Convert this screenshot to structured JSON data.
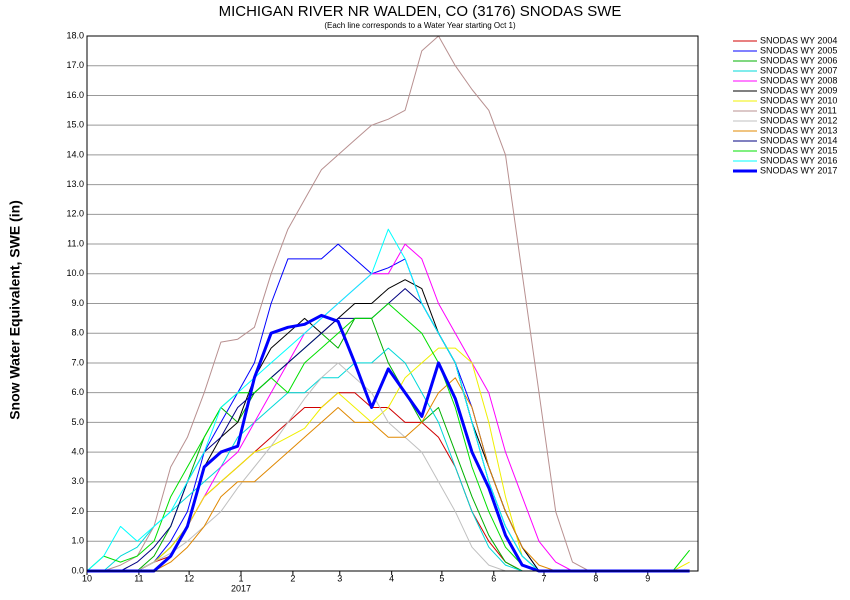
{
  "chart_data": {
    "type": "line",
    "title": "MICHIGAN RIVER NR WALDEN, CO (3176) SNODAS SWE",
    "subtitle": "(Each line corresponds to a Water Year starting Oct 1)",
    "y_label": "Snow Water Equivalent, SWE (in)",
    "x_annotation": "2017",
    "grid": true,
    "legend": "outside-right",
    "x": [
      0,
      10,
      20,
      30,
      40,
      50,
      60,
      70,
      80,
      90,
      100,
      110,
      120,
      130,
      140,
      150,
      160,
      170,
      180,
      190,
      200,
      210,
      220,
      230,
      240,
      250,
      260,
      270,
      280,
      290,
      300,
      310,
      320,
      330,
      340,
      350,
      360
    ],
    "xlim": [
      0,
      365
    ],
    "xticks": [
      {
        "value": 0,
        "label": "10"
      },
      {
        "value": 31,
        "label": "11"
      },
      {
        "value": 61,
        "label": "12"
      },
      {
        "value": 92,
        "label": "1"
      },
      {
        "value": 123,
        "label": "2"
      },
      {
        "value": 151,
        "label": "3"
      },
      {
        "value": 182,
        "label": "4"
      },
      {
        "value": 212,
        "label": "5"
      },
      {
        "value": 243,
        "label": "6"
      },
      {
        "value": 273,
        "label": "7"
      },
      {
        "value": 304,
        "label": "8"
      },
      {
        "value": 335,
        "label": "9"
      }
    ],
    "ylim": [
      0,
      18
    ],
    "yticks": [
      {
        "value": 0,
        "label": "0.0"
      },
      {
        "value": 1,
        "label": "1.0"
      },
      {
        "value": 2,
        "label": "2.0"
      },
      {
        "value": 3,
        "label": "3.0"
      },
      {
        "value": 4,
        "label": "4.0"
      },
      {
        "value": 5,
        "label": "5.0"
      },
      {
        "value": 6,
        "label": "6.0"
      },
      {
        "value": 7,
        "label": "7.0"
      },
      {
        "value": 8,
        "label": "8.0"
      },
      {
        "value": 9,
        "label": "9.0"
      },
      {
        "value": 10,
        "label": "10.0"
      },
      {
        "value": 11,
        "label": "11.0"
      },
      {
        "value": 12,
        "label": "12.0"
      },
      {
        "value": 13,
        "label": "13.0"
      },
      {
        "value": 14,
        "label": "14.0"
      },
      {
        "value": 15,
        "label": "15.0"
      },
      {
        "value": 16,
        "label": "16.0"
      },
      {
        "value": 17,
        "label": "17.0"
      },
      {
        "value": 18,
        "label": "18.0"
      }
    ],
    "series": [
      {
        "name": "SNODAS WY 2004",
        "color": "#d00000",
        "values": [
          0,
          0,
          0,
          0,
          0.3,
          0.5,
          1.5,
          2.5,
          3,
          3.5,
          4,
          4.5,
          5,
          5.5,
          5.5,
          6,
          6,
          5.5,
          5.5,
          5,
          5,
          4.5,
          3.5,
          2,
          1,
          0.3,
          0,
          0,
          0,
          0,
          0,
          0,
          0,
          0,
          0,
          0,
          0
        ]
      },
      {
        "name": "SNODAS WY 2005",
        "color": "#0000ff",
        "values": [
          0,
          0,
          0,
          0,
          0.3,
          1,
          2,
          4,
          5,
          6,
          7,
          9,
          10.5,
          10.5,
          10.5,
          11,
          10.5,
          10,
          10.2,
          10.5,
          9,
          8,
          7,
          5.5,
          3.5,
          2,
          0.8,
          0,
          0,
          0,
          0,
          0,
          0,
          0,
          0,
          0,
          0
        ]
      },
      {
        "name": "SNODAS WY 2006",
        "color": "#00b000",
        "values": [
          0,
          0,
          0,
          0,
          0.5,
          1.5,
          3,
          4.5,
          5.5,
          5,
          6,
          6.5,
          7,
          7.5,
          8,
          7.5,
          8.5,
          8.5,
          7,
          6,
          5,
          5.5,
          4,
          2.5,
          1.2,
          0.3,
          0,
          0,
          0,
          0,
          0,
          0,
          0,
          0,
          0,
          0,
          0
        ]
      },
      {
        "name": "SNODAS WY 2007",
        "color": "#00d8d8",
        "values": [
          0,
          0,
          0.5,
          0.8,
          1.5,
          2,
          2.5,
          3,
          3.5,
          4.5,
          5,
          5.5,
          6,
          6,
          6.5,
          6.5,
          7,
          7,
          7.5,
          7,
          6,
          5,
          3.5,
          2,
          0.8,
          0.2,
          0,
          0,
          0,
          0,
          0,
          0,
          0,
          0,
          0,
          0,
          0
        ]
      },
      {
        "name": "SNODAS WY 2008",
        "color": "#ff00ff",
        "values": [
          0,
          0,
          0,
          0,
          0,
          0.5,
          1.5,
          2.5,
          3.5,
          4,
          5,
          6,
          7,
          8,
          8.5,
          9,
          9.5,
          10,
          10,
          11,
          10.5,
          9,
          8,
          7,
          6,
          4,
          2.5,
          1,
          0.3,
          0,
          0,
          0,
          0,
          0,
          0,
          0,
          0
        ]
      },
      {
        "name": "SNODAS WY 2009",
        "color": "#000000",
        "values": [
          0,
          0,
          0,
          0,
          0.3,
          0.8,
          1.5,
          3.5,
          4.5,
          5,
          6.5,
          7.5,
          8,
          8.5,
          8,
          8.5,
          9,
          9,
          9.5,
          9.8,
          9.5,
          8,
          7,
          5,
          3.5,
          2,
          0.8,
          0,
          0,
          0,
          0,
          0,
          0,
          0,
          0,
          0,
          0
        ]
      },
      {
        "name": "SNODAS WY 2010",
        "color": "#f0f000",
        "values": [
          0,
          0,
          0,
          0,
          0.3,
          0.8,
          1.5,
          2.5,
          3,
          3.5,
          4,
          4.2,
          4.5,
          4.8,
          5.5,
          6,
          5.5,
          5,
          5.5,
          6.5,
          7,
          7.5,
          7.5,
          7,
          5,
          2.5,
          0.5,
          0,
          0,
          0,
          0,
          0,
          0,
          0,
          0,
          0,
          0.3
        ]
      },
      {
        "name": "SNODAS WY 2011",
        "color": "#b89090",
        "values": [
          0,
          0,
          0.2,
          0.5,
          1.5,
          3.5,
          4.5,
          6,
          7.7,
          7.8,
          8.2,
          10,
          11.5,
          12.5,
          13.5,
          14,
          14.5,
          15,
          15.2,
          15.5,
          17.5,
          18,
          17,
          16.2,
          15.5,
          14,
          10,
          6,
          2,
          0.3,
          0,
          0,
          0,
          0,
          0,
          0,
          0
        ]
      },
      {
        "name": "SNODAS WY 2012",
        "color": "#c0c0c0",
        "values": [
          0,
          0,
          0,
          0,
          0.3,
          0.6,
          1,
          1.5,
          2,
          2.8,
          3.5,
          4.2,
          5,
          5.8,
          6.5,
          7,
          6.5,
          6,
          5,
          4.5,
          4,
          3,
          2,
          0.8,
          0.2,
          0,
          0,
          0,
          0,
          0,
          0,
          0,
          0,
          0,
          0,
          0,
          0
        ]
      },
      {
        "name": "SNODAS WY 2013",
        "color": "#e08800",
        "values": [
          0,
          0,
          0,
          0,
          0,
          0.3,
          0.8,
          1.5,
          2.5,
          3,
          3,
          3.5,
          4,
          4.5,
          5,
          5.5,
          5,
          5,
          4.5,
          4.5,
          5,
          6,
          6.5,
          5.5,
          3.5,
          2,
          0.8,
          0.2,
          0,
          0,
          0,
          0,
          0,
          0,
          0,
          0,
          0
        ]
      },
      {
        "name": "SNODAS WY 2014",
        "color": "#000080",
        "values": [
          0,
          0,
          0,
          0.3,
          0.8,
          1.5,
          3,
          4,
          4.5,
          5.5,
          6,
          6.5,
          7,
          7.5,
          8,
          8.5,
          8.5,
          8.5,
          9,
          9.5,
          9,
          8,
          7,
          5,
          3,
          1.5,
          0.5,
          0,
          0,
          0,
          0,
          0,
          0,
          0,
          0,
          0,
          0
        ]
      },
      {
        "name": "SNODAS WY 2015",
        "color": "#00e000",
        "values": [
          0,
          0.5,
          0.3,
          0.5,
          1,
          2.5,
          3.5,
          4.5,
          5.5,
          6,
          6,
          6.5,
          6,
          7,
          7.5,
          8,
          8.5,
          8.5,
          9,
          8.5,
          8,
          7,
          5.5,
          3.5,
          2,
          0.8,
          0.2,
          0,
          0,
          0,
          0,
          0,
          0,
          0,
          0,
          0,
          0.7
        ]
      },
      {
        "name": "SNODAS WY 2016",
        "color": "#00ffff",
        "values": [
          0,
          0.5,
          1.5,
          1,
          1.5,
          2,
          3,
          4,
          5.5,
          6,
          6.5,
          7,
          7.5,
          8,
          8.5,
          9,
          9.5,
          10,
          11.5,
          10.5,
          9,
          8,
          7,
          5,
          3,
          1.5,
          0.5,
          0,
          0,
          0,
          0,
          0,
          0,
          0,
          0,
          0,
          0
        ]
      },
      {
        "name": "SNODAS WY 2017",
        "color": "#0000ff",
        "line_width": 3,
        "values": [
          0,
          0,
          0,
          0,
          0,
          0.5,
          1.5,
          3.5,
          4,
          4.2,
          6.5,
          8,
          8.2,
          8.3,
          8.6,
          8.4,
          7,
          5.5,
          6.8,
          6,
          5.2,
          7,
          5.8,
          4,
          2.8,
          1.2,
          0.2,
          0,
          0,
          0,
          0,
          0,
          0,
          0,
          0,
          0,
          0
        ]
      }
    ]
  }
}
